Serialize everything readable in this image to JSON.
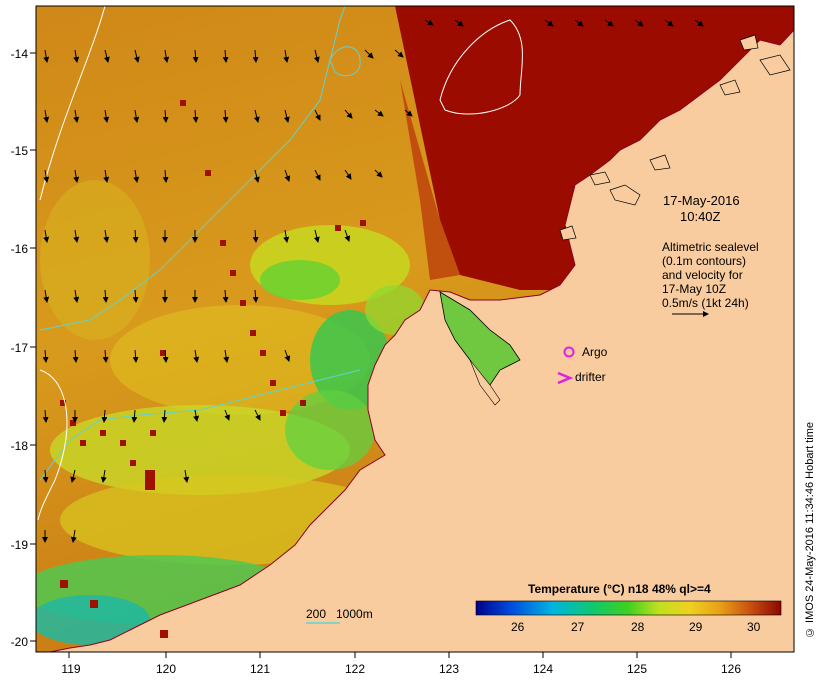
{
  "map": {
    "lon_ticks": [
      "119",
      "120",
      "121",
      "122",
      "123",
      "124",
      "125",
      "126"
    ],
    "lat_ticks": [
      "-14",
      "-15",
      "-16",
      "-17",
      "-18",
      "-19",
      "-20"
    ]
  },
  "annotation": {
    "date": "17-May-2016",
    "time": "10:40Z",
    "altimetry_lines": [
      "Altimetric sealevel",
      "(0.1m contours)",
      "and velocity for",
      "17-May 10Z"
    ],
    "scale_vector": "0.5m/s (1kt 24h)",
    "argo_label": "Argo",
    "drifter_label": "drifter"
  },
  "depth_legend": {
    "label1": "200",
    "label2": "1000m"
  },
  "colorbar": {
    "title": "Temperature (°C) n18 48% ql>=4",
    "ticks": [
      "26",
      "27",
      "28",
      "29",
      "30"
    ]
  },
  "credit": "© IMOS 24-May-2016 11:34:46 Hobart time",
  "colors": {
    "land": "#f9cc9f",
    "sst_hot": "#9b0b00",
    "contour": "#5fd3cf",
    "argo": "#e020e0"
  }
}
